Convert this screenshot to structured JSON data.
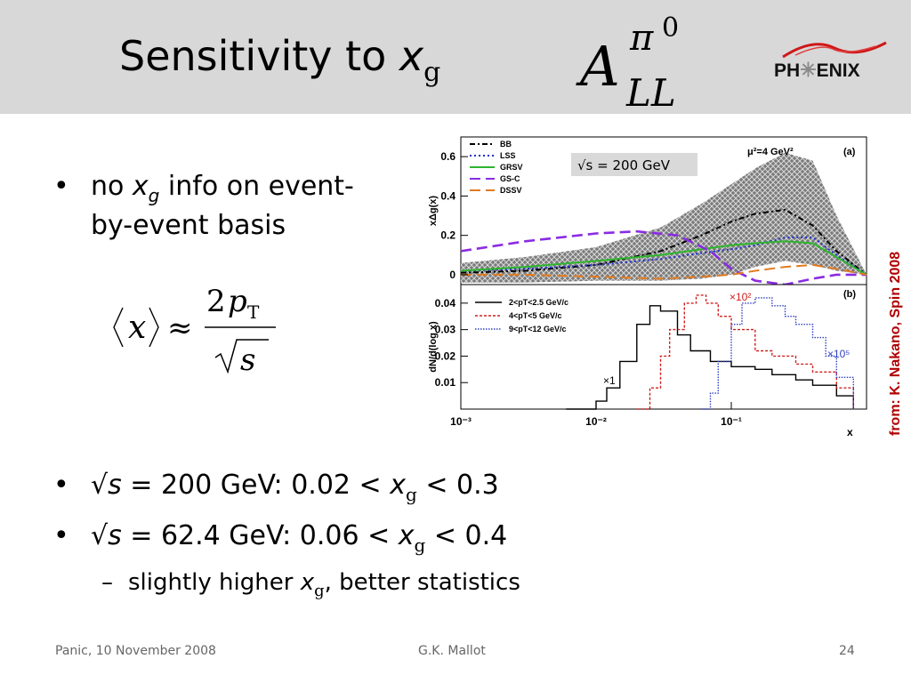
{
  "slide": {
    "title_main": "Sensitivity to ",
    "title_x": "x",
    "title_sub": "g",
    "asym_A": "A",
    "asym_pi": "π",
    "asym_zero": "0",
    "asym_LL": "LL",
    "logo_left": "PH",
    "logo_star": "✳",
    "logo_right": "ENIX"
  },
  "bullets": {
    "b1_dot": "•",
    "b1_pre": "no ",
    "b1_x": "x",
    "b1_g": "g",
    "b1_post": " info on event-",
    "b1_line2": "by-event basis",
    "b2_dot": "•",
    "b2_pre": "√",
    "b2_s": "s",
    "b2_mid": " = 200 GeV: 0.02 < ",
    "b2_x": "x",
    "b2_g": "g",
    "b2_post": " < 0.3",
    "b3_dot": "•",
    "b3_pre": "√",
    "b3_s": "s",
    "b3_mid": " = 62.4 GeV: 0.06 < ",
    "b3_x": "x",
    "b3_g": "g",
    "b3_post": " < 0.4",
    "sub_dash": "–",
    "sub_pre": "slightly higher ",
    "sub_x": "x",
    "sub_g": "g",
    "sub_post": ", better statistics"
  },
  "formula": {
    "lhs_x": "x",
    "approx": "≈",
    "num_2": "2",
    "num_p": "p",
    "num_T": "T",
    "den_s": "s"
  },
  "credit": "from:  K.  Nakano, Spin 2008",
  "footer": {
    "left": "Panic, 10 November 2008",
    "center": "G.K. Mallot",
    "right": "24"
  },
  "chart_data": [
    {
      "type": "line",
      "panel": "(a)",
      "ylabel": "xΔg(x)",
      "xscale": "log",
      "xlim": [
        0.001,
        1
      ],
      "ylim": [
        -0.05,
        0.7
      ],
      "yticks": [
        "0",
        "0.2",
        "0.4",
        "0.6"
      ],
      "annotation": "μ²=4 GeV²",
      "energy_label": "√s = 200 GeV",
      "legend_position": "top-left",
      "series": [
        {
          "name": "BB",
          "color": "#000000",
          "style": "dashdot",
          "x": [
            0.001,
            0.003,
            0.01,
            0.03,
            0.06,
            0.1,
            0.15,
            0.25,
            0.4,
            0.6,
            1.0
          ],
          "y": [
            0.01,
            0.02,
            0.05,
            0.12,
            0.2,
            0.27,
            0.31,
            0.33,
            0.25,
            0.12,
            0.0
          ]
        },
        {
          "name": "LSS",
          "color": "#1f2fd0",
          "style": "dotted",
          "x": [
            0.001,
            0.003,
            0.01,
            0.03,
            0.06,
            0.1,
            0.15,
            0.25,
            0.4,
            0.6,
            1.0
          ],
          "y": [
            0.02,
            0.03,
            0.05,
            0.08,
            0.11,
            0.13,
            0.15,
            0.19,
            0.19,
            0.1,
            0.0
          ]
        },
        {
          "name": "GRSV",
          "color": "#2db52d",
          "style": "solid",
          "x": [
            0.001,
            0.003,
            0.01,
            0.03,
            0.06,
            0.1,
            0.15,
            0.25,
            0.4,
            0.6,
            1.0
          ],
          "y": [
            0.02,
            0.04,
            0.07,
            0.1,
            0.13,
            0.15,
            0.16,
            0.17,
            0.16,
            0.09,
            0.0
          ]
        },
        {
          "name": "GS-C",
          "color": "#8a2be2",
          "style": "dashed",
          "x": [
            0.001,
            0.003,
            0.01,
            0.02,
            0.04,
            0.07,
            0.1,
            0.15,
            0.25,
            0.4,
            0.6,
            1.0
          ],
          "y": [
            0.12,
            0.17,
            0.21,
            0.22,
            0.2,
            0.12,
            0.03,
            -0.03,
            -0.05,
            -0.02,
            0.0,
            0.0
          ]
        },
        {
          "name": "DSSV",
          "color": "#e07b20",
          "style": "dashed",
          "x": [
            0.001,
            0.003,
            0.01,
            0.03,
            0.06,
            0.1,
            0.15,
            0.25,
            0.4,
            0.6,
            1.0
          ],
          "y": [
            0.0,
            0.0,
            -0.01,
            -0.02,
            -0.01,
            0.0,
            0.02,
            0.04,
            0.05,
            0.03,
            0.0
          ]
        }
      ],
      "band": {
        "x": [
          0.001,
          0.003,
          0.01,
          0.03,
          0.06,
          0.1,
          0.15,
          0.25,
          0.4,
          0.6,
          1.0
        ],
        "upper": [
          0.06,
          0.09,
          0.14,
          0.24,
          0.36,
          0.46,
          0.54,
          0.62,
          0.58,
          0.3,
          0.0
        ],
        "lower": [
          -0.04,
          -0.04,
          -0.03,
          -0.03,
          -0.02,
          0.0,
          0.04,
          0.07,
          0.05,
          0.02,
          0.0
        ]
      }
    },
    {
      "type": "line",
      "panel": "(b)",
      "ylabel": "dN/d(log x)",
      "xlabel": "x",
      "xscale": "log",
      "xlim": [
        0.001,
        1
      ],
      "ylim": [
        0.0,
        0.047
      ],
      "yticks": [
        "0.01",
        "0.02",
        "0.03",
        "0.04"
      ],
      "xticks": [
        "10⁻³",
        "10⁻²",
        "10⁻¹"
      ],
      "legend_position": "top-left",
      "series": [
        {
          "name": "2<pT<2.5 GeV/c",
          "scale_label": "×1",
          "color": "#000000",
          "style": "step",
          "x": [
            0.006,
            0.01,
            0.012,
            0.015,
            0.02,
            0.025,
            0.03,
            0.04,
            0.05,
            0.07,
            0.1,
            0.15,
            0.2,
            0.3,
            0.4,
            0.6,
            0.8
          ],
          "y": [
            0.0,
            0.003,
            0.008,
            0.018,
            0.032,
            0.039,
            0.037,
            0.028,
            0.022,
            0.018,
            0.016,
            0.015,
            0.013,
            0.011,
            0.009,
            0.005,
            0.0
          ]
        },
        {
          "name": "4<pT<5 GeV/c",
          "scale_label": "×10²",
          "color": "#d02020",
          "style": "step",
          "x": [
            0.02,
            0.025,
            0.03,
            0.035,
            0.045,
            0.055,
            0.065,
            0.08,
            0.1,
            0.15,
            0.2,
            0.3,
            0.4,
            0.6,
            0.8
          ],
          "y": [
            0.0,
            0.008,
            0.02,
            0.03,
            0.04,
            0.043,
            0.04,
            0.035,
            0.03,
            0.022,
            0.02,
            0.017,
            0.014,
            0.008,
            0.0
          ]
        },
        {
          "name": "9<pT<12 GeV/c",
          "scale_label": "×10⁵",
          "color": "#3040c0",
          "style": "step",
          "x": [
            0.06,
            0.07,
            0.08,
            0.1,
            0.12,
            0.15,
            0.2,
            0.25,
            0.3,
            0.4,
            0.5,
            0.6,
            0.8
          ],
          "y": [
            0.0,
            0.006,
            0.018,
            0.032,
            0.04,
            0.042,
            0.039,
            0.035,
            0.032,
            0.027,
            0.02,
            0.012,
            0.0
          ]
        }
      ]
    }
  ]
}
